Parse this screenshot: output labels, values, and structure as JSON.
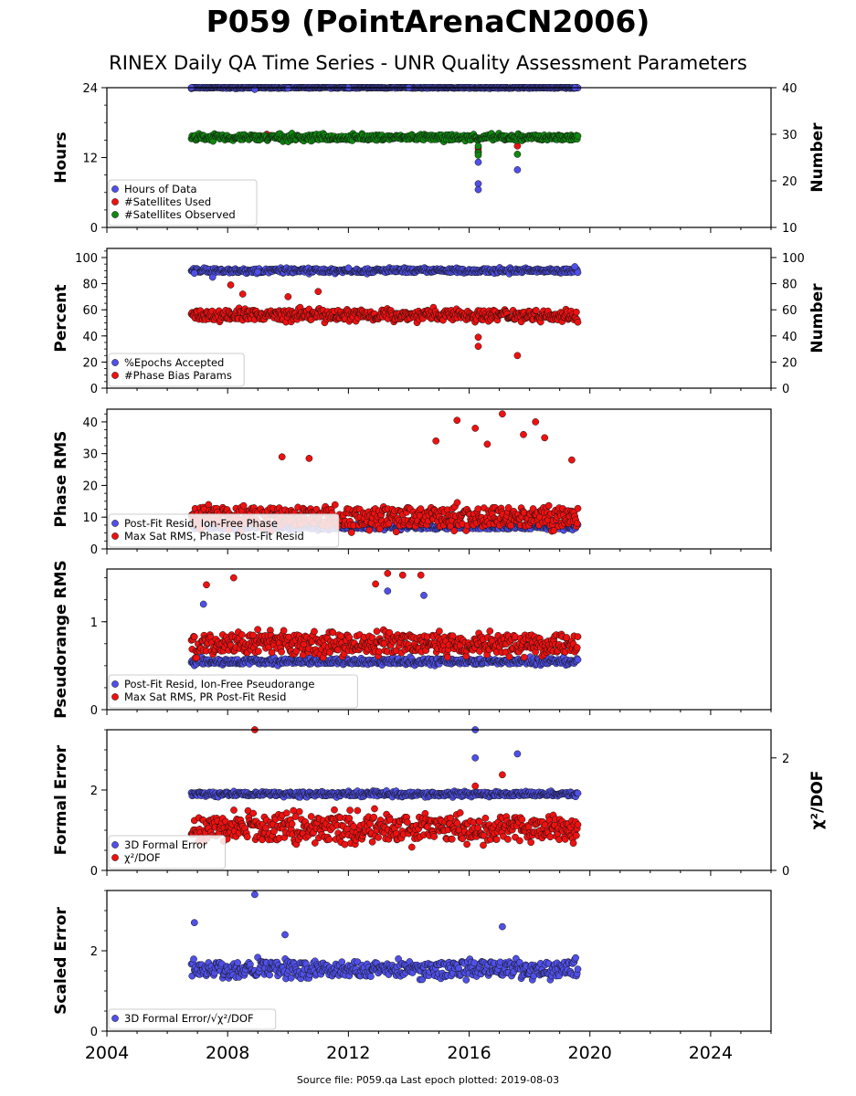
{
  "title": "P059 (PointArenaCN2006)",
  "subtitle": "RINEX Daily QA Time Series - UNR Quality Assessment Parameters",
  "source": "Source file: P059.qa Last epoch plotted: 2019-08-03",
  "colors": {
    "blue": "#5050e8",
    "red": "#ee1111",
    "green": "#118811",
    "dark": "#1a1a60"
  },
  "chart_data": [
    {
      "type": "scatter",
      "ylabel": "Hours",
      "ylabel_right": "Number",
      "ylim": [
        0,
        24
      ],
      "ylim_right": [
        10,
        40
      ],
      "yticks": [
        0,
        12,
        24
      ],
      "yticks_right": [
        10,
        20,
        30,
        40
      ],
      "xlim": [
        2004,
        2026
      ],
      "xticks": [
        2004,
        2008,
        2012,
        2016,
        2020,
        2024
      ],
      "legend": "lower-left",
      "series": [
        {
          "name": "Hours of Data",
          "axis": "left",
          "color": "blue",
          "x": [
            2006.8,
            2008.9,
            2010.0,
            2012.0,
            2014.0,
            2016.3,
            2016.3,
            2016.3,
            2017.6,
            2019.5
          ],
          "y": [
            24,
            23.7,
            23.9,
            24,
            24,
            11.2,
            7.5,
            6.5,
            9.9,
            24
          ],
          "band": {
            "x0": 2006.8,
            "x1": 2019.6,
            "center": 24,
            "spread": 0.15
          }
        },
        {
          "name": "#Satellites Used",
          "axis": "right",
          "color": "red",
          "x": [
            2009.3,
            2016.3,
            2016.3,
            2016.3,
            2017.6
          ],
          "y": [
            30.0,
            28.8,
            27.0,
            26.3,
            27.5
          ]
        },
        {
          "name": "#Satellites Observed",
          "axis": "right",
          "color": "green",
          "x": [
            2016.3,
            2016.3,
            2016.3,
            2017.6
          ],
          "y": [
            27.5,
            26.0,
            25.5,
            25.7
          ],
          "band": {
            "x0": 2006.8,
            "x1": 2019.6,
            "center": 29.3,
            "spread": 0.9
          }
        }
      ]
    },
    {
      "type": "scatter",
      "ylabel": "Percent",
      "ylabel_right": "Number",
      "ylim": [
        0,
        107
      ],
      "ylim_right": [
        0,
        107
      ],
      "yticks": [
        0,
        20,
        40,
        60,
        80,
        100
      ],
      "yticks_right": [
        0,
        20,
        40,
        60,
        80,
        100
      ],
      "xlim": [
        2004,
        2026
      ],
      "xticks": [
        2004,
        2008,
        2012,
        2016,
        2020,
        2024
      ],
      "legend": "lower-left",
      "series": [
        {
          "name": "%Epochs Accepted",
          "axis": "left",
          "color": "blue",
          "x": [
            2006.9,
            2007.5,
            2009.0,
            2012.0,
            2019.5
          ],
          "y": [
            88,
            85,
            89,
            92,
            93
          ],
          "band": {
            "x0": 2006.8,
            "x1": 2019.6,
            "center": 90,
            "spread": 2.5
          }
        },
        {
          "name": "#Phase Bias Params",
          "axis": "right",
          "color": "red",
          "x": [
            2008.1,
            2008.5,
            2010.0,
            2011.0,
            2016.3,
            2016.3,
            2017.6
          ],
          "y": [
            79,
            72,
            70,
            74,
            39,
            32,
            25
          ],
          "band": {
            "x0": 2006.8,
            "x1": 2019.6,
            "center": 56,
            "spread": 6
          }
        }
      ]
    },
    {
      "type": "scatter",
      "ylabel": "Phase RMS",
      "ylim": [
        0,
        44
      ],
      "yticks": [
        0,
        10,
        20,
        30,
        40
      ],
      "xlim": [
        2004,
        2026
      ],
      "xticks": [
        2004,
        2008,
        2012,
        2016,
        2020,
        2024
      ],
      "legend": "lower-left",
      "series": [
        {
          "name": "Post-Fit Resid, Ion-Free Phase",
          "axis": "left",
          "color": "blue",
          "x": [],
          "y": [],
          "band": {
            "x0": 2006.8,
            "x1": 2019.6,
            "center": 7,
            "spread": 1.2
          }
        },
        {
          "name": "Max Sat RMS, Phase Post-Fit Resid",
          "axis": "left",
          "color": "red",
          "x": [
            2009.8,
            2010.7,
            2014.9,
            2015.6,
            2016.2,
            2016.6,
            2017.1,
            2017.8,
            2018.2,
            2018.5,
            2019.4
          ],
          "y": [
            29,
            28.5,
            34,
            40.5,
            38,
            33,
            42.5,
            36,
            40,
            35,
            28
          ],
          "band": {
            "x0": 2006.8,
            "x1": 2019.6,
            "center": 10,
            "spread": 5
          }
        }
      ]
    },
    {
      "type": "scatter",
      "ylabel": "Pseudorange RMS",
      "ylim": [
        0,
        1.6
      ],
      "yticks": [
        0,
        1
      ],
      "xlim": [
        2004,
        2026
      ],
      "xticks": [
        2004,
        2008,
        2012,
        2016,
        2020,
        2024
      ],
      "legend": "lower-left",
      "series": [
        {
          "name": "Post-Fit Resid, Ion-Free Pseudorange",
          "axis": "left",
          "color": "blue",
          "x": [
            2007.2,
            2013.3,
            2014.5
          ],
          "y": [
            1.2,
            1.35,
            1.3
          ],
          "band": {
            "x0": 2006.8,
            "x1": 2019.6,
            "center": 0.55,
            "spread": 0.05
          }
        },
        {
          "name": "Max Sat RMS, PR Post-Fit Resid",
          "axis": "left",
          "color": "red",
          "x": [
            2007.3,
            2008.2,
            2012.9,
            2013.3,
            2013.8,
            2014.4
          ],
          "y": [
            1.42,
            1.5,
            1.43,
            1.55,
            1.53,
            1.53
          ],
          "band": {
            "x0": 2006.8,
            "x1": 2019.6,
            "center": 0.75,
            "spread": 0.17
          }
        }
      ]
    },
    {
      "type": "scatter",
      "ylabel": "Formal Error",
      "ylabel_right": "χ²/DOF",
      "ylim": [
        0,
        3.5
      ],
      "ylim_right": [
        0,
        2.5
      ],
      "yticks": [
        0,
        2
      ],
      "yticks_right": [
        0,
        2
      ],
      "xlim": [
        2004,
        2026
      ],
      "xticks": [
        2004,
        2008,
        2012,
        2016,
        2020,
        2024
      ],
      "legend": "lower-left",
      "series": [
        {
          "name": "3D Formal Error",
          "axis": "left",
          "color": "blue",
          "x": [
            2016.2,
            2016.2,
            2017.6
          ],
          "y": [
            3.5,
            2.8,
            2.9
          ],
          "band": {
            "x0": 2006.8,
            "x1": 2019.6,
            "center": 1.9,
            "spread": 0.08
          }
        },
        {
          "name": "χ²/DOF",
          "axis": "right",
          "color": "red",
          "x": [
            2008.9,
            2017.1,
            2016.2
          ],
          "y": [
            2.5,
            1.7,
            1.5
          ],
          "band": {
            "x0": 2006.8,
            "x1": 2019.6,
            "center": 0.75,
            "spread": 0.35
          }
        }
      ]
    },
    {
      "type": "scatter",
      "ylabel": "Scaled Error",
      "ylim": [
        0,
        3.5
      ],
      "yticks": [
        0,
        2
      ],
      "xlim": [
        2004,
        2026
      ],
      "xticks": [
        2004,
        2008,
        2012,
        2016,
        2020,
        2024
      ],
      "xticklabels": [
        "2004",
        "2008",
        "2012",
        "2016",
        "2020",
        "2024"
      ],
      "legend": "lower-left",
      "series": [
        {
          "name": "3D Formal Error/√χ²/DOF",
          "axis": "left",
          "color": "blue",
          "x": [
            2008.9,
            2006.9,
            2009.9,
            2017.1
          ],
          "y": [
            3.4,
            2.7,
            2.4,
            2.6
          ],
          "band": {
            "x0": 2006.8,
            "x1": 2019.6,
            "center": 1.55,
            "spread": 0.3
          }
        }
      ]
    }
  ]
}
